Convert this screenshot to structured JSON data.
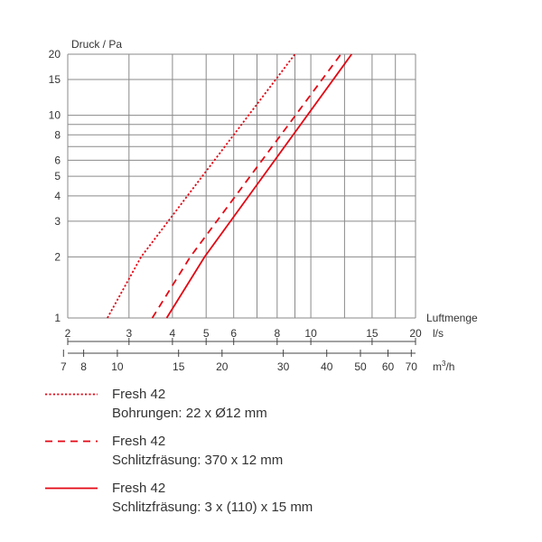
{
  "chart_data": {
    "type": "line",
    "scale": "log-log",
    "ylabel": "Druck / Pa",
    "xlabel": "Luftmenge",
    "y_ticks": [
      1,
      2,
      3,
      4,
      5,
      6,
      8,
      10,
      15,
      20
    ],
    "ylim": [
      1,
      20
    ],
    "x_axis_ls": {
      "unit": "l/s",
      "range": [
        2,
        20
      ],
      "labels": [
        2,
        3,
        4,
        5,
        6,
        8,
        10,
        15,
        20
      ],
      "gridlines": [
        3,
        4,
        5,
        6,
        7,
        8,
        9,
        10,
        12.5,
        15,
        17.5
      ]
    },
    "x_axis_m3h": {
      "unit": "m3/h",
      "unit_display": {
        "base": "m",
        "sup": "3",
        "rest": "/h"
      },
      "labels": [
        7,
        8,
        10,
        15,
        20,
        30,
        40,
        50,
        60,
        70
      ]
    },
    "series": [
      {
        "name": "Fresh 42",
        "description": "Bohrungen: 22 x Ø12 mm",
        "style": "dotted",
        "color": "#e30613",
        "points": [
          [
            2.6,
            1.0
          ],
          [
            3.25,
            2.0
          ],
          [
            9.0,
            20.0
          ]
        ]
      },
      {
        "name": "Fresh 42",
        "description": "Schlitzfräsung: 370 x 12 mm",
        "style": "dashed",
        "color": "#e30613",
        "points": [
          [
            3.5,
            1.0
          ],
          [
            4.5,
            2.0
          ],
          [
            12.2,
            20.0
          ]
        ]
      },
      {
        "name": "Fresh 42",
        "description": "Schlitzfräsung: 3 x (110) x 15 mm",
        "style": "solid",
        "color": "#e30613",
        "points": [
          [
            3.85,
            1.0
          ],
          [
            4.95,
            2.0
          ],
          [
            13.1,
            20.0
          ]
        ]
      }
    ]
  }
}
